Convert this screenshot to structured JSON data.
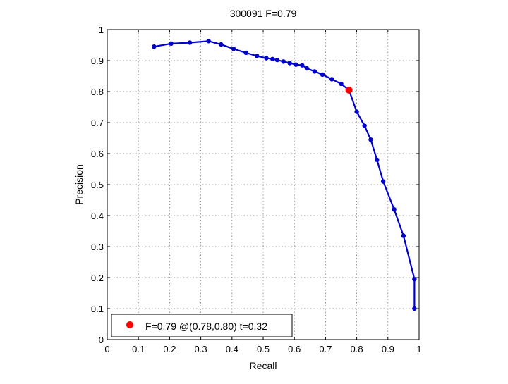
{
  "chart_data": {
    "type": "line",
    "title": "300091 F=0.79",
    "xlabel": "Recall",
    "ylabel": "Precision",
    "xlim": [
      0,
      1
    ],
    "ylim": [
      0,
      1
    ],
    "xticks": [
      "0",
      "0.1",
      "0.2",
      "0.3",
      "0.4",
      "0.5",
      "0.6",
      "0.7",
      "0.8",
      "0.9",
      "1"
    ],
    "yticks": [
      "0",
      "0.1",
      "0.2",
      "0.3",
      "0.4",
      "0.5",
      "0.6",
      "0.7",
      "0.8",
      "0.9",
      "1"
    ],
    "grid": true,
    "legend_position": "bottom-left",
    "series": [
      {
        "color": "#0000cc",
        "x": [
          0.985,
          0.985,
          0.95,
          0.92,
          0.885,
          0.865,
          0.845,
          0.825,
          0.8,
          0.775,
          0.75,
          0.72,
          0.69,
          0.665,
          0.64,
          0.625,
          0.605,
          0.585,
          0.565,
          0.545,
          0.53,
          0.51,
          0.48,
          0.445,
          0.405,
          0.365,
          0.325,
          0.265,
          0.205,
          0.15
        ],
        "y": [
          0.1,
          0.195,
          0.335,
          0.42,
          0.51,
          0.58,
          0.645,
          0.69,
          0.735,
          0.805,
          0.825,
          0.84,
          0.855,
          0.865,
          0.875,
          0.885,
          0.887,
          0.892,
          0.897,
          0.902,
          0.905,
          0.908,
          0.915,
          0.925,
          0.938,
          0.952,
          0.963,
          0.958,
          0.955,
          0.945
        ]
      }
    ],
    "highlight": {
      "label": "F=0.79 @(0.78,0.80) t=0.32",
      "x": 0.775,
      "y": 0.805,
      "color": "#ff0000"
    }
  }
}
